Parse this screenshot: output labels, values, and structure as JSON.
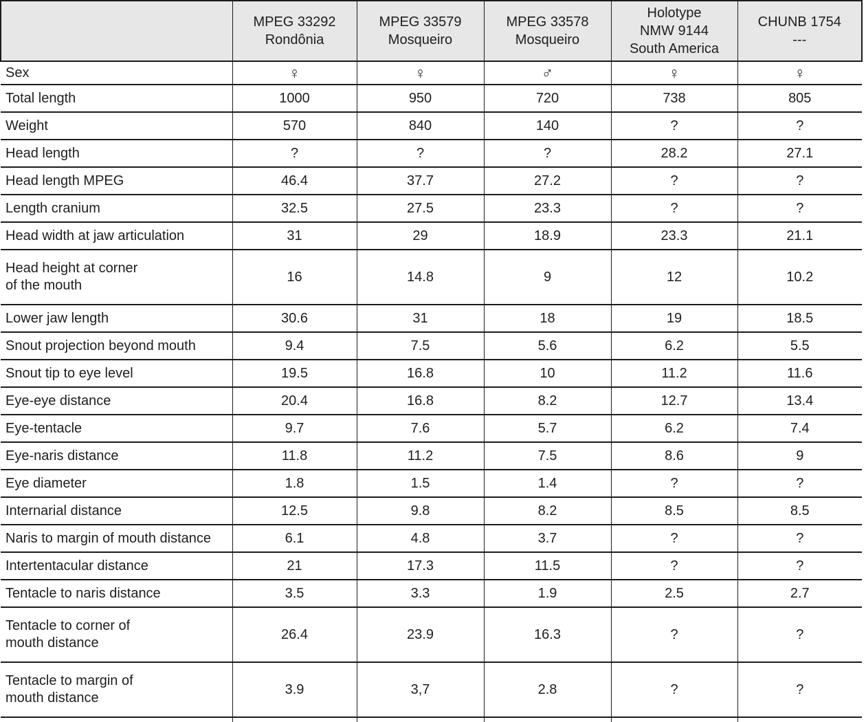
{
  "colors": {
    "header_bg": "#e7e7e7",
    "border": "#1b1b1b",
    "text": "#1e1e1e"
  },
  "table": {
    "column_headers": [
      "",
      "MPEG 33292\nRondônia",
      "MPEG 33579\nMosqueiro",
      "MPEG 33578\nMosqueiro",
      "Holotype\nNMW 9144\nSouth America",
      "CHUNB 1754\n---"
    ],
    "sex_row": {
      "label": "Sex",
      "values": [
        "♀",
        "♀",
        "♂",
        "♀",
        "♀"
      ]
    },
    "rows": [
      {
        "label": "Total length",
        "tall": false,
        "values": [
          "1000",
          "950",
          "720",
          "738",
          "805"
        ]
      },
      {
        "label": "Weight",
        "tall": false,
        "values": [
          "570",
          "840",
          "140",
          "?",
          "?"
        ]
      },
      {
        "label": "Head length",
        "tall": false,
        "values": [
          "?",
          "?",
          "?",
          "28.2",
          "27.1"
        ]
      },
      {
        "label": "Head length MPEG",
        "tall": false,
        "values": [
          "46.4",
          "37.7",
          "27.2",
          "?",
          "?"
        ]
      },
      {
        "label": "Length cranium",
        "tall": false,
        "values": [
          "32.5",
          "27.5",
          "23.3",
          "?",
          "?"
        ]
      },
      {
        "label": "Head width at jaw articulation",
        "tall": false,
        "values": [
          "31",
          "29",
          "18.9",
          "23.3",
          "21.1"
        ]
      },
      {
        "label": "Head height at corner\nof the mouth",
        "tall": true,
        "values": [
          "16",
          "14.8",
          "9",
          "12",
          "10.2"
        ]
      },
      {
        "label": "Lower jaw length",
        "tall": false,
        "values": [
          "30.6",
          "31",
          "18",
          "19",
          "18.5"
        ]
      },
      {
        "label": "Snout projection beyond mouth",
        "tall": false,
        "values": [
          "9.4",
          "7.5",
          "5.6",
          "6.2",
          "5.5"
        ]
      },
      {
        "label": "Snout tip to eye level",
        "tall": false,
        "values": [
          "19.5",
          "16.8",
          "10",
          "11.2",
          "11.6"
        ]
      },
      {
        "label": "Eye-eye distance",
        "tall": false,
        "values": [
          "20.4",
          "16.8",
          "8.2",
          "12.7",
          "13.4"
        ]
      },
      {
        "label": "Eye-tentacle",
        "tall": false,
        "values": [
          "9.7",
          "7.6",
          "5.7",
          "6.2",
          "7.4"
        ]
      },
      {
        "label": "Eye-naris distance",
        "tall": false,
        "values": [
          "11.8",
          "11.2",
          "7.5",
          "8.6",
          "9"
        ]
      },
      {
        "label": "Eye diameter",
        "tall": false,
        "values": [
          "1.8",
          "1.5",
          "1.4",
          "?",
          "?"
        ]
      },
      {
        "label": "Internarial distance",
        "tall": false,
        "values": [
          "12.5",
          "9.8",
          "8.2",
          "8.5",
          "8.5"
        ]
      },
      {
        "label": "Naris to margin of mouth distance",
        "tall": false,
        "values": [
          "6.1",
          "4.8",
          "3.7",
          "?",
          "?"
        ]
      },
      {
        "label": "Intertentacular distance",
        "tall": false,
        "values": [
          "21",
          "17.3",
          "11.5",
          "?",
          "?"
        ]
      },
      {
        "label": "Tentacle to naris distance",
        "tall": false,
        "values": [
          "3.5",
          "3.3",
          "1.9",
          "2.5",
          "2.7"
        ]
      },
      {
        "label": "Tentacle to corner of\nmouth distance",
        "tall": true,
        "values": [
          "26.4",
          "23.9",
          "16.3",
          "?",
          "?"
        ]
      },
      {
        "label": "Tentacle to margin of\nmouth distance",
        "tall": true,
        "values": [
          "3.9",
          "3,7",
          "2.8",
          "?",
          "?"
        ]
      }
    ]
  }
}
